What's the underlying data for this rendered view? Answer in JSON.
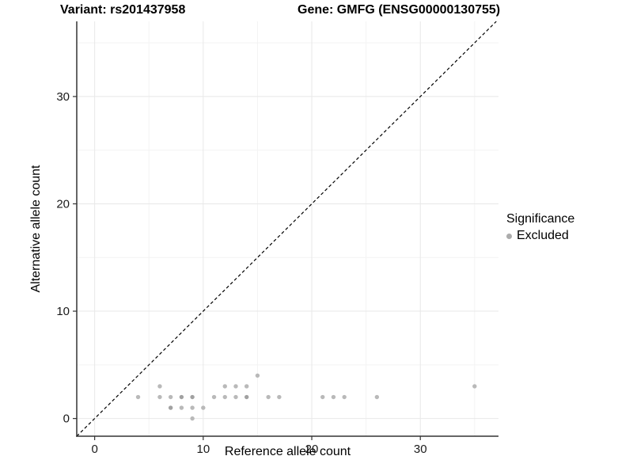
{
  "titles": {
    "variant": "Variant: rs201437958",
    "gene": "Gene: GMFG (ENSG00000130755)"
  },
  "legend": {
    "title": "Significance",
    "items": [
      {
        "label": "Excluded",
        "color": "#acacac"
      }
    ]
  },
  "chart_data": {
    "type": "scatter",
    "title_left": "Variant: rs201437958",
    "title_right": "Gene: GMFG (ENSG00000130755)",
    "xlabel": "Reference allele count",
    "ylabel": "Alternative allele count",
    "xlim": [
      -1.65,
      37.2
    ],
    "ylim": [
      -1.65,
      37.0
    ],
    "xticks": [
      0,
      10,
      20,
      30
    ],
    "yticks": [
      0,
      10,
      20,
      30
    ],
    "x_minor": [
      5,
      15,
      25,
      35
    ],
    "y_minor": [
      5,
      15,
      25,
      35
    ],
    "grid": true,
    "legend_position": "right",
    "identity_line": {
      "slope": 1,
      "intercept": 0,
      "style": "dashed",
      "color": "#000000"
    },
    "series": [
      {
        "name": "Excluded",
        "color": "#b9b9b9",
        "overlap_color": "#a1a1a1",
        "points": [
          {
            "x": 4,
            "y": 2,
            "n": 1
          },
          {
            "x": 6,
            "y": 2,
            "n": 1
          },
          {
            "x": 6,
            "y": 3,
            "n": 1
          },
          {
            "x": 7,
            "y": 1,
            "n": 2
          },
          {
            "x": 7,
            "y": 2,
            "n": 1
          },
          {
            "x": 8,
            "y": 1,
            "n": 1
          },
          {
            "x": 8,
            "y": 2,
            "n": 2
          },
          {
            "x": 9,
            "y": 0,
            "n": 1
          },
          {
            "x": 9,
            "y": 1,
            "n": 1
          },
          {
            "x": 9,
            "y": 2,
            "n": 2
          },
          {
            "x": 10,
            "y": 1,
            "n": 1
          },
          {
            "x": 11,
            "y": 2,
            "n": 1
          },
          {
            "x": 12,
            "y": 2,
            "n": 1
          },
          {
            "x": 12,
            "y": 3,
            "n": 1
          },
          {
            "x": 13,
            "y": 2,
            "n": 1
          },
          {
            "x": 13,
            "y": 3,
            "n": 1
          },
          {
            "x": 14,
            "y": 2,
            "n": 2
          },
          {
            "x": 14,
            "y": 3,
            "n": 1
          },
          {
            "x": 15,
            "y": 4,
            "n": 1
          },
          {
            "x": 16,
            "y": 2,
            "n": 1
          },
          {
            "x": 17,
            "y": 2,
            "n": 1
          },
          {
            "x": 21,
            "y": 2,
            "n": 1
          },
          {
            "x": 22,
            "y": 2,
            "n": 1
          },
          {
            "x": 23,
            "y": 2,
            "n": 1
          },
          {
            "x": 26,
            "y": 2,
            "n": 1
          },
          {
            "x": 35,
            "y": 3,
            "n": 1
          }
        ]
      }
    ],
    "colors": {
      "grid_major": "#e8e8e8",
      "grid_minor": "#f3f3f3",
      "axis_line": "#333333",
      "tick_label": "#1a1a1a"
    }
  }
}
